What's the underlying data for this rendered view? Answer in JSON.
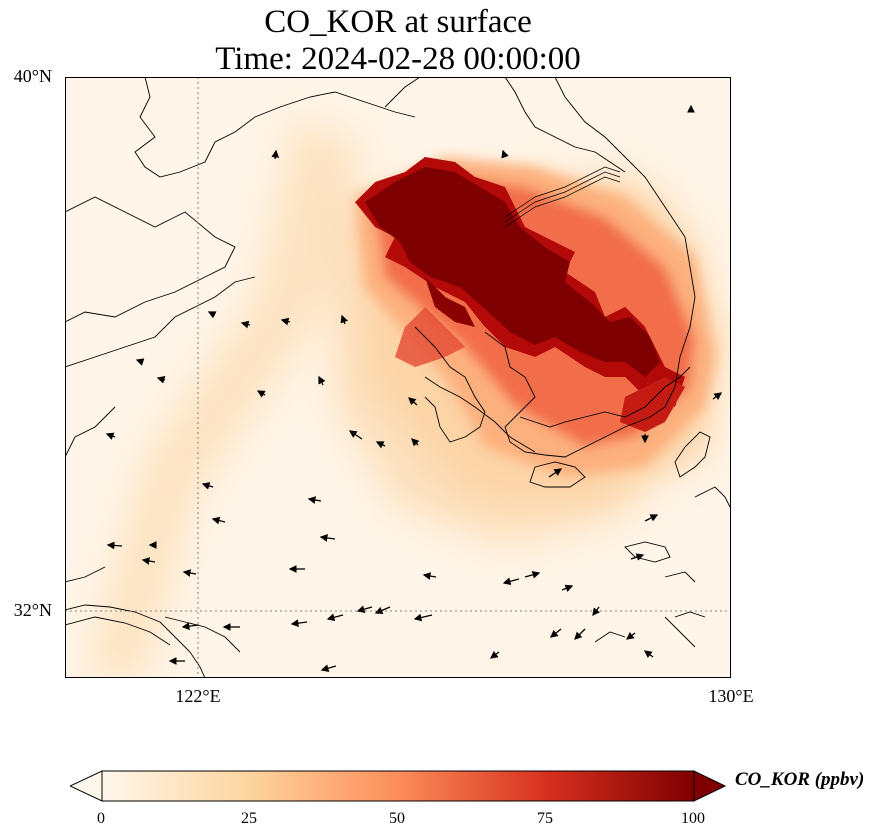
{
  "title": {
    "line1": "CO_KOR at surface",
    "line2": "Time: 2024-02-28 00:00:00"
  },
  "map": {
    "lat_ticks": [
      {
        "value": 40,
        "label": "40°N"
      },
      {
        "value": 32,
        "label": "32°N"
      }
    ],
    "lon_ticks": [
      {
        "value": 122,
        "label": "122°E"
      },
      {
        "value": 130,
        "label": "130°E"
      }
    ],
    "extent": {
      "lon": [
        120,
        130
      ],
      "lat": [
        31,
        40
      ]
    },
    "gridlines": "dotted at 122°E and 32°N",
    "field": "CO_KOR",
    "overlay": "wind vectors (arrows)"
  },
  "colorbar": {
    "label": "CO_KOR (ppbv)",
    "ticks": [
      "0",
      "25",
      "50",
      "75",
      "100"
    ],
    "range": [
      0,
      100
    ],
    "extend": "both",
    "colormap": "OrRd",
    "colors": [
      "#fff7ec",
      "#fdd49e",
      "#fc8d59",
      "#d7301f",
      "#7f0000"
    ]
  }
}
